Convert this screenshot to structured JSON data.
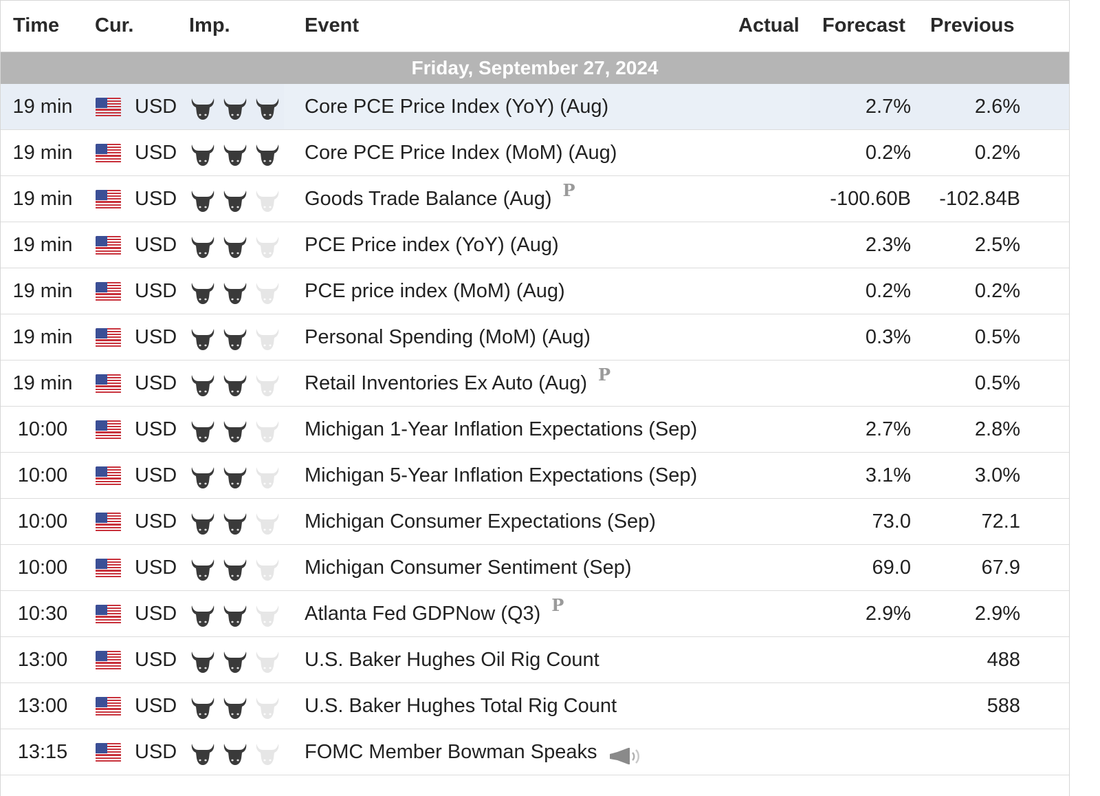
{
  "header": {
    "time": "Time",
    "cur": "Cur.",
    "imp": "Imp.",
    "event": "Event",
    "actual": "Actual",
    "forecast": "Forecast",
    "previous": "Previous"
  },
  "day_label": "Friday, September 27, 2024",
  "colors": {
    "day_bar": "#b5b5b5",
    "highlight_row": "#e8eef6",
    "bull_on": "#3a3a3a",
    "bull_off": "#e6e6e6"
  },
  "rows": [
    {
      "time": "19 min",
      "currency": "USD",
      "flag_icon": "us-flag-icon",
      "importance": 3,
      "event": "Core PCE Price Index (YoY) (Aug)",
      "badge": "",
      "forecast": "2.7%",
      "previous": "2.6%"
    },
    {
      "time": "19 min",
      "currency": "USD",
      "flag_icon": "us-flag-icon",
      "importance": 3,
      "event": "Core PCE Price Index (MoM) (Aug)",
      "badge": "",
      "forecast": "0.2%",
      "previous": "0.2%"
    },
    {
      "time": "19 min",
      "currency": "USD",
      "flag_icon": "us-flag-icon",
      "importance": 2,
      "event": "Goods Trade Balance (Aug)",
      "badge": "P",
      "forecast": "-100.60B",
      "previous": "-102.84B"
    },
    {
      "time": "19 min",
      "currency": "USD",
      "flag_icon": "us-flag-icon",
      "importance": 2,
      "event": "PCE Price index (YoY) (Aug)",
      "badge": "",
      "forecast": "2.3%",
      "previous": "2.5%"
    },
    {
      "time": "19 min",
      "currency": "USD",
      "flag_icon": "us-flag-icon",
      "importance": 2,
      "event": "PCE price index (MoM) (Aug)",
      "badge": "",
      "forecast": "0.2%",
      "previous": "0.2%"
    },
    {
      "time": "19 min",
      "currency": "USD",
      "flag_icon": "us-flag-icon",
      "importance": 2,
      "event": "Personal Spending (MoM) (Aug)",
      "badge": "",
      "forecast": "0.3%",
      "previous": "0.5%"
    },
    {
      "time": "19 min",
      "currency": "USD",
      "flag_icon": "us-flag-icon",
      "importance": 2,
      "event": "Retail Inventories Ex Auto (Aug)",
      "badge": "P",
      "forecast": "",
      "previous": "0.5%"
    },
    {
      "time": "10:00",
      "currency": "USD",
      "flag_icon": "us-flag-icon",
      "importance": 2,
      "event": "Michigan 1-Year Inflation Expectations (Sep)",
      "badge": "",
      "forecast": "2.7%",
      "previous": "2.8%"
    },
    {
      "time": "10:00",
      "currency": "USD",
      "flag_icon": "us-flag-icon",
      "importance": 2,
      "event": "Michigan 5-Year Inflation Expectations (Sep)",
      "badge": "",
      "forecast": "3.1%",
      "previous": "3.0%"
    },
    {
      "time": "10:00",
      "currency": "USD",
      "flag_icon": "us-flag-icon",
      "importance": 2,
      "event": "Michigan Consumer Expectations (Sep)",
      "badge": "",
      "forecast": "73.0",
      "previous": "72.1"
    },
    {
      "time": "10:00",
      "currency": "USD",
      "flag_icon": "us-flag-icon",
      "importance": 2,
      "event": "Michigan Consumer Sentiment (Sep)",
      "badge": "",
      "forecast": "69.0",
      "previous": "67.9"
    },
    {
      "time": "10:30",
      "currency": "USD",
      "flag_icon": "us-flag-icon",
      "importance": 2,
      "event": "Atlanta Fed GDPNow (Q3)",
      "badge": "P",
      "forecast": "2.9%",
      "previous": "2.9%"
    },
    {
      "time": "13:00",
      "currency": "USD",
      "flag_icon": "us-flag-icon",
      "importance": 2,
      "event": "U.S. Baker Hughes Oil Rig Count",
      "badge": "",
      "forecast": "",
      "previous": "488"
    },
    {
      "time": "13:00",
      "currency": "USD",
      "flag_icon": "us-flag-icon",
      "importance": 2,
      "event": "U.S. Baker Hughes Total Rig Count",
      "badge": "",
      "forecast": "",
      "previous": "588"
    },
    {
      "time": "13:15",
      "currency": "USD",
      "flag_icon": "us-flag-icon",
      "importance": 2,
      "event": "FOMC Member Bowman Speaks",
      "badge": "speech-icon",
      "forecast": "",
      "previous": ""
    }
  ]
}
